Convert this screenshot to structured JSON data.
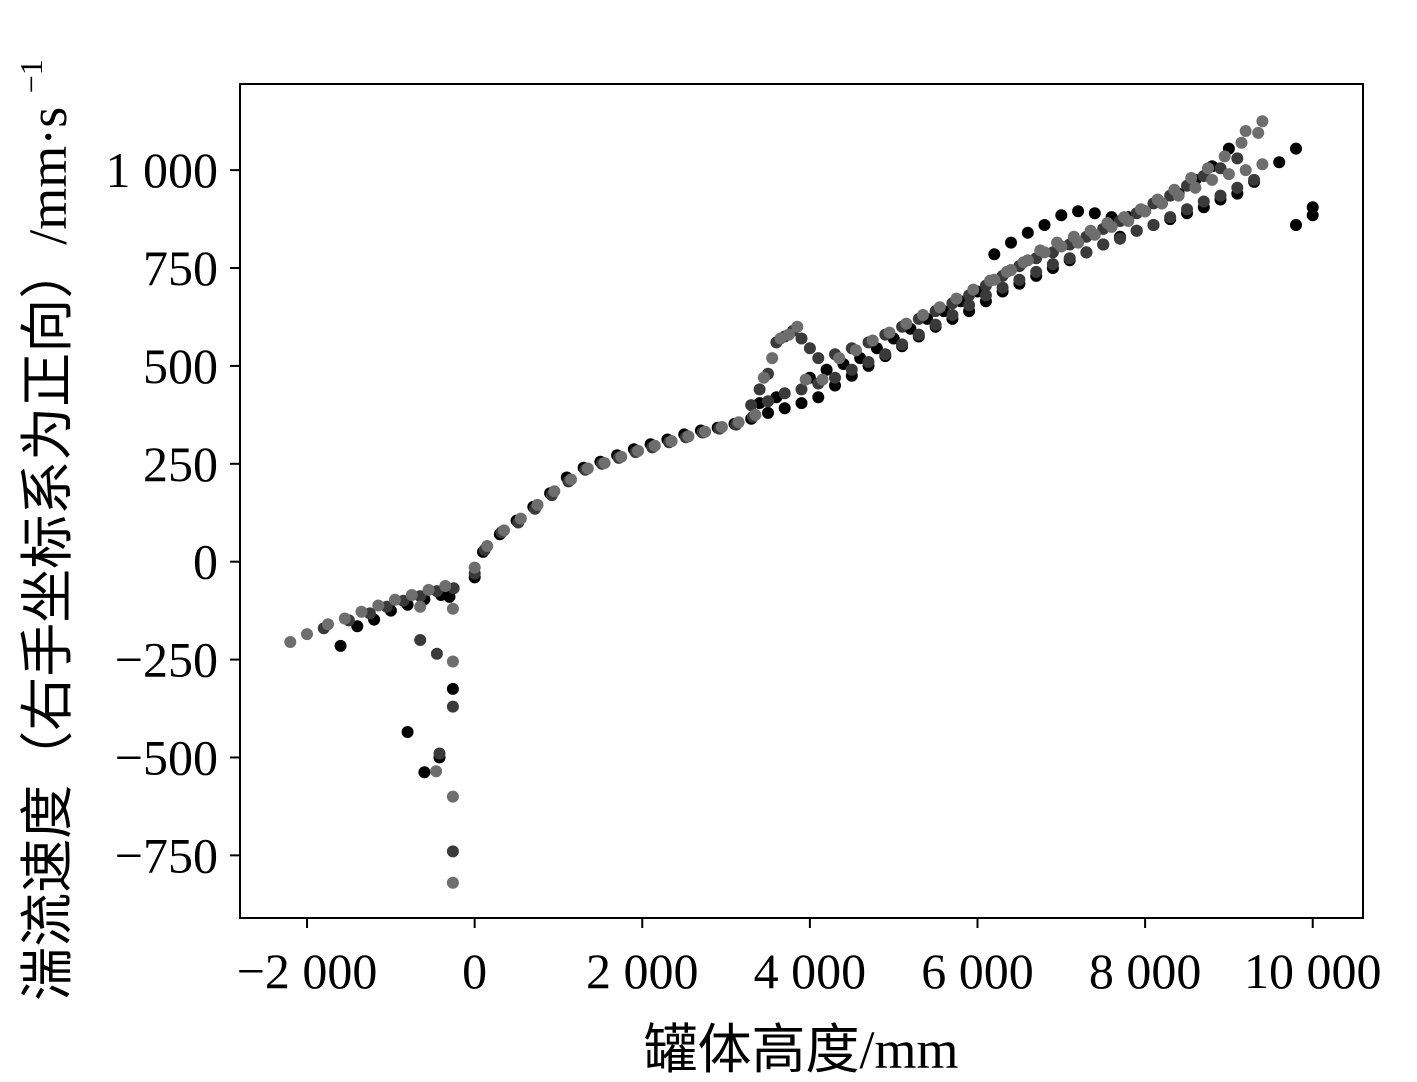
{
  "chart_data": {
    "type": "scatter",
    "xlabel": "罐体高度/mm",
    "ylabel": "湍流速度（右手坐标系为正向）/mm·s",
    "ylabel_superscript": "−1",
    "xlim": [
      -2800,
      10600
    ],
    "ylim": [
      -910,
      1220
    ],
    "x_ticks": [
      -2000,
      0,
      2000,
      4000,
      6000,
      8000,
      10000
    ],
    "x_tick_labels": [
      "−2 000",
      "0",
      "2 000",
      "4 000",
      "6 000",
      "8 000",
      "10 000"
    ],
    "y_ticks": [
      -750,
      -500,
      -250,
      0,
      250,
      500,
      750,
      1000
    ],
    "y_tick_labels": [
      "−750",
      "−500",
      "−250",
      "0",
      "250",
      "500",
      "750",
      "1 000"
    ],
    "grid": false,
    "legend": "none",
    "series_colors": [
      "#000000",
      "#3a3a3a",
      "#6e6e6e"
    ],
    "series": [
      {
        "color": "#000000",
        "points": [
          [
            -1600,
            -215
          ],
          [
            -1400,
            -165
          ],
          [
            -1200,
            -148
          ],
          [
            -1000,
            -125
          ],
          [
            -800,
            -110
          ],
          [
            -600,
            -96
          ],
          [
            -400,
            -85
          ],
          [
            -300,
            -90
          ],
          [
            -800,
            -435
          ],
          [
            -600,
            -538
          ],
          [
            -420,
            -500
          ],
          [
            -260,
            -325
          ],
          [
            0,
            -40
          ],
          [
            100,
            25
          ],
          [
            300,
            70
          ],
          [
            500,
            105
          ],
          [
            700,
            140
          ],
          [
            900,
            175
          ],
          [
            1100,
            215
          ],
          [
            1300,
            240
          ],
          [
            1500,
            255
          ],
          [
            1700,
            272
          ],
          [
            1900,
            287
          ],
          [
            2100,
            300
          ],
          [
            2300,
            312
          ],
          [
            2500,
            325
          ],
          [
            2700,
            335
          ],
          [
            2900,
            342
          ],
          [
            3100,
            352
          ],
          [
            3300,
            365
          ],
          [
            3500,
            380
          ],
          [
            3700,
            392
          ],
          [
            3900,
            405
          ],
          [
            4100,
            420
          ],
          [
            4300,
            450
          ],
          [
            4500,
            475
          ],
          [
            4700,
            500
          ],
          [
            4900,
            525
          ],
          [
            5100,
            550
          ],
          [
            5300,
            575
          ],
          [
            5500,
            600
          ],
          [
            5700,
            620
          ],
          [
            5900,
            640
          ],
          [
            6100,
            665
          ],
          [
            6300,
            690
          ],
          [
            6500,
            710
          ],
          [
            6700,
            730
          ],
          [
            6900,
            750
          ],
          [
            7100,
            770
          ],
          [
            7300,
            790
          ],
          [
            7500,
            810
          ],
          [
            7700,
            830
          ],
          [
            7900,
            845
          ],
          [
            8100,
            860
          ],
          [
            8300,
            875
          ],
          [
            8500,
            890
          ],
          [
            8700,
            905
          ],
          [
            8900,
            925
          ],
          [
            9100,
            940
          ],
          [
            9300,
            970
          ],
          [
            9600,
            1020
          ],
          [
            9800,
            1055
          ],
          [
            9800,
            860
          ],
          [
            10000,
            885
          ],
          [
            10000,
            905
          ],
          [
            6200,
            785
          ],
          [
            6400,
            815
          ],
          [
            6600,
            840
          ],
          [
            6800,
            860
          ],
          [
            7000,
            885
          ],
          [
            7200,
            895
          ],
          [
            7400,
            890
          ],
          [
            7600,
            880
          ],
          [
            7800,
            880
          ],
          [
            8000,
            895
          ],
          [
            8200,
            915
          ],
          [
            8400,
            940
          ],
          [
            8600,
            975
          ],
          [
            8800,
            1010
          ],
          [
            9000,
            1055
          ],
          [
            3400,
            405
          ],
          [
            3600,
            420
          ],
          [
            4000,
            470
          ],
          [
            4200,
            490
          ],
          [
            4400,
            505
          ],
          [
            4600,
            520
          ],
          [
            4800,
            545
          ],
          [
            5000,
            570
          ],
          [
            5200,
            595
          ],
          [
            5400,
            620
          ],
          [
            5600,
            640
          ],
          [
            5800,
            665
          ],
          [
            6000,
            690
          ]
        ]
      },
      {
        "color": "#3a3a3a",
        "points": [
          [
            -1800,
            -170
          ],
          [
            -1500,
            -150
          ],
          [
            -1250,
            -132
          ],
          [
            -1050,
            -115
          ],
          [
            -850,
            -100
          ],
          [
            -650,
            -88
          ],
          [
            -450,
            -75
          ],
          [
            -250,
            -68
          ],
          [
            -650,
            -200
          ],
          [
            -450,
            -235
          ],
          [
            -420,
            -490
          ],
          [
            -260,
            -370
          ],
          [
            -260,
            -740
          ],
          [
            0,
            -30
          ],
          [
            120,
            30
          ],
          [
            320,
            75
          ],
          [
            520,
            100
          ],
          [
            720,
            135
          ],
          [
            920,
            170
          ],
          [
            1120,
            205
          ],
          [
            1320,
            235
          ],
          [
            1520,
            250
          ],
          [
            1720,
            265
          ],
          [
            1920,
            280
          ],
          [
            2120,
            292
          ],
          [
            2320,
            305
          ],
          [
            2520,
            318
          ],
          [
            2720,
            330
          ],
          [
            2920,
            340
          ],
          [
            3120,
            350
          ],
          [
            3320,
            370
          ],
          [
            3400,
            440
          ],
          [
            3500,
            480
          ],
          [
            3600,
            560
          ],
          [
            3700,
            575
          ],
          [
            3800,
            590
          ],
          [
            3900,
            570
          ],
          [
            4000,
            545
          ],
          [
            4100,
            520
          ],
          [
            4300,
            530
          ],
          [
            4500,
            545
          ],
          [
            4700,
            560
          ],
          [
            4900,
            580
          ],
          [
            5100,
            600
          ],
          [
            5300,
            620
          ],
          [
            5500,
            640
          ],
          [
            5700,
            660
          ],
          [
            5900,
            680
          ],
          [
            6100,
            705
          ],
          [
            6300,
            730
          ],
          [
            6500,
            755
          ],
          [
            6700,
            775
          ],
          [
            6900,
            790
          ],
          [
            7100,
            810
          ],
          [
            7300,
            830
          ],
          [
            7500,
            850
          ],
          [
            7700,
            870
          ],
          [
            7900,
            890
          ],
          [
            8100,
            915
          ],
          [
            8300,
            935
          ],
          [
            8500,
            960
          ],
          [
            8700,
            985
          ],
          [
            8900,
            1005
          ],
          [
            9100,
            1030
          ],
          [
            3300,
            400
          ],
          [
            3500,
            410
          ],
          [
            3700,
            430
          ],
          [
            3900,
            440
          ],
          [
            4100,
            455
          ],
          [
            4300,
            470
          ],
          [
            4500,
            490
          ],
          [
            4700,
            510
          ],
          [
            4900,
            530
          ],
          [
            5100,
            555
          ],
          [
            5300,
            580
          ],
          [
            5500,
            605
          ],
          [
            5700,
            630
          ],
          [
            5900,
            655
          ],
          [
            6100,
            680
          ],
          [
            6300,
            700
          ],
          [
            6500,
            720
          ],
          [
            6700,
            740
          ],
          [
            6900,
            760
          ],
          [
            7100,
            775
          ],
          [
            7300,
            790
          ],
          [
            7500,
            810
          ],
          [
            7700,
            825
          ],
          [
            7900,
            845
          ],
          [
            8100,
            860
          ],
          [
            8300,
            880
          ],
          [
            8500,
            900
          ],
          [
            8700,
            920
          ],
          [
            8900,
            935
          ],
          [
            9100,
            955
          ],
          [
            9300,
            975
          ]
        ]
      },
      {
        "color": "#6e6e6e",
        "points": [
          [
            -2200,
            -205
          ],
          [
            -2000,
            -185
          ],
          [
            -1750,
            -160
          ],
          [
            -1550,
            -145
          ],
          [
            -1350,
            -128
          ],
          [
            -1150,
            -112
          ],
          [
            -950,
            -97
          ],
          [
            -750,
            -85
          ],
          [
            -550,
            -72
          ],
          [
            -350,
            -62
          ],
          [
            -650,
            -115
          ],
          [
            -460,
            -535
          ],
          [
            -260,
            -255
          ],
          [
            -260,
            -600
          ],
          [
            -260,
            -820
          ],
          [
            -260,
            -120
          ],
          [
            0,
            -15
          ],
          [
            150,
            40
          ],
          [
            350,
            80
          ],
          [
            550,
            110
          ],
          [
            750,
            145
          ],
          [
            950,
            180
          ],
          [
            1150,
            210
          ],
          [
            1350,
            238
          ],
          [
            1550,
            252
          ],
          [
            1750,
            268
          ],
          [
            1950,
            283
          ],
          [
            2150,
            296
          ],
          [
            2350,
            308
          ],
          [
            2550,
            320
          ],
          [
            2750,
            332
          ],
          [
            2950,
            344
          ],
          [
            3150,
            356
          ],
          [
            3350,
            375
          ],
          [
            3450,
            470
          ],
          [
            3550,
            520
          ],
          [
            3650,
            570
          ],
          [
            3750,
            580
          ],
          [
            3850,
            600
          ],
          [
            3950,
            465
          ],
          [
            4150,
            465
          ],
          [
            4350,
            520
          ],
          [
            4550,
            540
          ],
          [
            4750,
            565
          ],
          [
            4950,
            585
          ],
          [
            5150,
            608
          ],
          [
            5350,
            630
          ],
          [
            5550,
            650
          ],
          [
            5750,
            672
          ],
          [
            5950,
            695
          ],
          [
            6150,
            718
          ],
          [
            6350,
            740
          ],
          [
            6550,
            765
          ],
          [
            6750,
            795
          ],
          [
            6950,
            815
          ],
          [
            7150,
            830
          ],
          [
            7350,
            845
          ],
          [
            7550,
            865
          ],
          [
            7750,
            880
          ],
          [
            7950,
            900
          ],
          [
            8150,
            925
          ],
          [
            8350,
            950
          ],
          [
            8550,
            980
          ],
          [
            8750,
            1005
          ],
          [
            8950,
            1035
          ],
          [
            9150,
            1070
          ],
          [
            9350,
            1095
          ],
          [
            9400,
            1125
          ],
          [
            9200,
            1100
          ],
          [
            6200,
            720
          ],
          [
            6400,
            745
          ],
          [
            6600,
            770
          ],
          [
            6800,
            790
          ],
          [
            7000,
            805
          ],
          [
            7200,
            815
          ],
          [
            7400,
            835
          ],
          [
            7600,
            855
          ],
          [
            7800,
            870
          ],
          [
            8000,
            895
          ],
          [
            8200,
            915
          ],
          [
            8400,
            935
          ],
          [
            8600,
            955
          ],
          [
            8800,
            975
          ],
          [
            9000,
            990
          ],
          [
            9200,
            1000
          ],
          [
            9400,
            1015
          ]
        ]
      }
    ]
  }
}
